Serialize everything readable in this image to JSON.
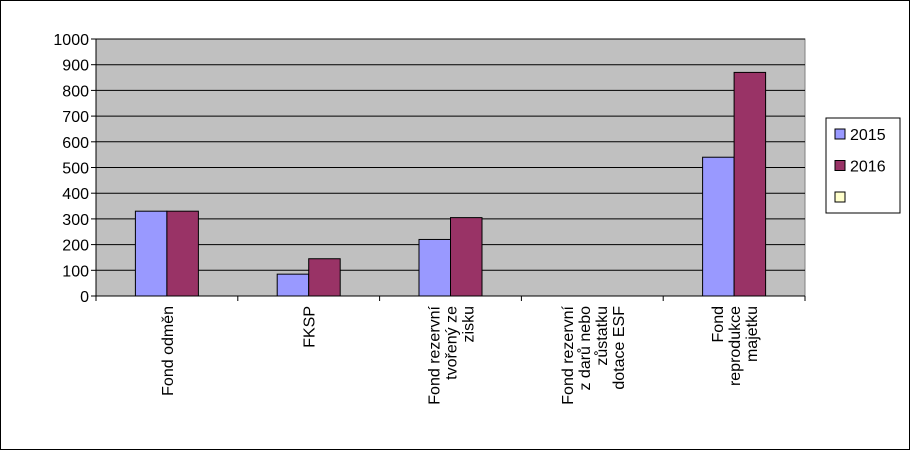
{
  "chart_data": {
    "type": "bar",
    "categories": [
      "Fond odměn",
      "FKSP",
      "Fond rezervní tvořený ze zisku",
      "Fond rezervní z darů nebo zůstatku dotace ESF",
      "Fond reprodukce majetku"
    ],
    "series": [
      {
        "name": "2015",
        "color": "#9999ff",
        "values": [
          330,
          85,
          220,
          null,
          540
        ]
      },
      {
        "name": "2016",
        "color": "#993366",
        "values": [
          330,
          145,
          305,
          null,
          870
        ]
      },
      {
        "color": "#ffffcc",
        "values": [
          null,
          null,
          null,
          null,
          null
        ]
      }
    ],
    "ylim": [
      0,
      1000
    ],
    "yticks": [
      0,
      100,
      200,
      300,
      400,
      500,
      600,
      700,
      800,
      900,
      1000
    ],
    "grid": true,
    "legend": "right",
    "plot_background": "#c0c0c0"
  }
}
